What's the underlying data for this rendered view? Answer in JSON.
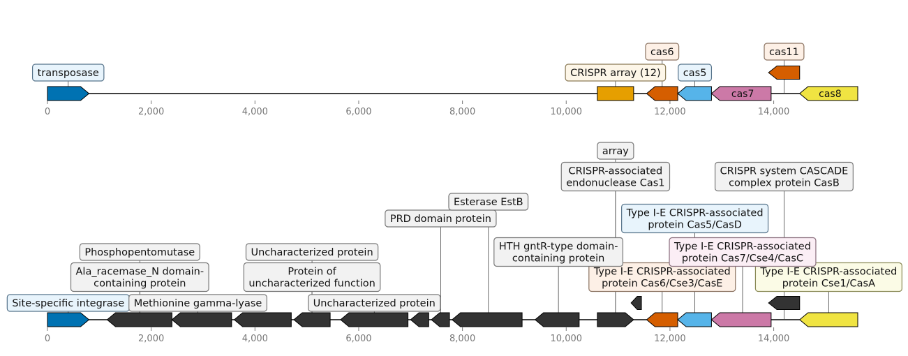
{
  "axis": {
    "ticks": [
      {
        "value": 0,
        "label": "0"
      },
      {
        "value": 2000,
        "label": "2,000"
      },
      {
        "value": 4000,
        "label": "4,000"
      },
      {
        "value": 6000,
        "label": "6,000"
      },
      {
        "value": 8000,
        "label": "8,000"
      },
      {
        "value": 10000,
        "label": "10,000"
      },
      {
        "value": 12000,
        "label": "12,000"
      },
      {
        "value": 14000,
        "label": "14,000"
      }
    ],
    "range": [
      0,
      15620
    ]
  },
  "colors": {
    "blue": "#0072b2",
    "orange": "#e69f00",
    "vermillion": "#d55e00",
    "skyblue": "#56b4e9",
    "pink": "#cc79a7",
    "yellow": "#f0e442",
    "dark": "#333333"
  },
  "track1": {
    "genes": [
      {
        "start": 0,
        "end": 800,
        "strand": 1,
        "color": "blue",
        "name": ""
      },
      {
        "start": 10600,
        "end": 11300,
        "strand": 0,
        "color": "orange",
        "name": ""
      },
      {
        "start": 11550,
        "end": 12150,
        "strand": -1,
        "color": "vermillion",
        "name": ""
      },
      {
        "start": 12150,
        "end": 12800,
        "strand": -1,
        "color": "skyblue",
        "name": ""
      },
      {
        "start": 12800,
        "end": 13950,
        "strand": -1,
        "color": "pink",
        "name": "cas7"
      },
      {
        "start": 14500,
        "end": 15620,
        "strand": -1,
        "color": "yellow",
        "name": "cas8"
      },
      {
        "start": 13900,
        "end": 14500,
        "strand": -1,
        "color": "vermillion",
        "name": "",
        "level": 1
      }
    ],
    "labels": [
      {
        "lines": [
          "transposase"
        ],
        "x": 400,
        "bg": "#e8f4fc",
        "border": "#56738a",
        "level": 0
      },
      {
        "lines": [
          "CRISPR array (12)"
        ],
        "x": 10950,
        "bg": "#fdf6e8",
        "border": "#8a7a56",
        "level": 0
      },
      {
        "lines": [
          "cas5"
        ],
        "x": 12480,
        "bg": "#e8f4fc",
        "border": "#56738a",
        "level": 0
      },
      {
        "lines": [
          "cas6"
        ],
        "x": 11850,
        "bg": "#fdf0e6",
        "border": "#8a7260",
        "level": 1
      },
      {
        "lines": [
          "cas11"
        ],
        "x": 14200,
        "bg": "#fdf0e6",
        "border": "#8a7260",
        "level": 1
      }
    ]
  },
  "track2": {
    "genes": [
      {
        "start": 0,
        "end": 800,
        "strand": 1,
        "color": "blue"
      },
      {
        "start": 1150,
        "end": 2400,
        "strand": -1,
        "color": "dark"
      },
      {
        "start": 2400,
        "end": 3550,
        "strand": -1,
        "color": "dark"
      },
      {
        "start": 3600,
        "end": 4700,
        "strand": -1,
        "color": "dark"
      },
      {
        "start": 4750,
        "end": 5450,
        "strand": -1,
        "color": "dark"
      },
      {
        "start": 5650,
        "end": 6950,
        "strand": -1,
        "color": "dark"
      },
      {
        "start": 7000,
        "end": 7350,
        "strand": -1,
        "color": "dark"
      },
      {
        "start": 7400,
        "end": 7750,
        "strand": -1,
        "color": "dark"
      },
      {
        "start": 7800,
        "end": 9150,
        "strand": -1,
        "color": "dark"
      },
      {
        "start": 9400,
        "end": 10250,
        "strand": -1,
        "color": "dark"
      },
      {
        "start": 10600,
        "end": 11300,
        "strand": 1,
        "color": "dark"
      },
      {
        "start": 11550,
        "end": 12150,
        "strand": -1,
        "color": "vermillion"
      },
      {
        "start": 12150,
        "end": 12800,
        "strand": -1,
        "color": "skyblue"
      },
      {
        "start": 12800,
        "end": 13950,
        "strand": -1,
        "color": "pink"
      },
      {
        "start": 14500,
        "end": 15620,
        "strand": -1,
        "color": "yellow"
      },
      {
        "start": 11250,
        "end": 11450,
        "strand": -1,
        "color": "dark",
        "level": 1
      },
      {
        "start": 13900,
        "end": 14500,
        "strand": -1,
        "color": "dark",
        "level": 1
      }
    ],
    "labels": [
      {
        "lines": [
          "Site-specific integrase"
        ],
        "x": 400,
        "level": 0,
        "bg": "#e8f4fc",
        "border": "#56738a"
      },
      {
        "lines": [
          "Methionine gamma-lyase"
        ],
        "x": 2900,
        "level": 0
      },
      {
        "lines": [
          "Uncharacterized protein"
        ],
        "x": 6300,
        "level": 0
      },
      {
        "lines": [
          "Ala_racemase_N domain-",
          "containing protein"
        ],
        "x": 1780,
        "level": 1
      },
      {
        "lines": [
          "Protein of",
          "uncharacterized function"
        ],
        "x": 5100,
        "level": 1
      },
      {
        "lines": [
          "Type I-E CRISPR-associated",
          "protein Cas6/Cse3/CasE"
        ],
        "x": 11850,
        "level": 1,
        "bg": "#fdf0e6",
        "border": "#8a7260"
      },
      {
        "lines": [
          "Type I-E CRISPR-associated",
          "protein Cse1/CasA"
        ],
        "x": 15060,
        "level": 1,
        "bg": "#fbfbe6",
        "border": "#8a8a56"
      },
      {
        "lines": [
          "Phosphopentomutase"
        ],
        "x": 1780,
        "level": 2
      },
      {
        "lines": [
          "Uncharacterized protein"
        ],
        "x": 5100,
        "level": 2
      },
      {
        "lines": [
          "HTH gntR-type domain-",
          "containing protein"
        ],
        "x": 9850,
        "level": 2
      },
      {
        "lines": [
          "Type I-E CRISPR-associated",
          "protein Cas7/Cse4/CasC"
        ],
        "x": 13400,
        "level": 2,
        "bg": "#fbeef5",
        "border": "#8a6f7e"
      },
      {
        "lines": [
          "PRD domain protein"
        ],
        "x": 7580,
        "level": 3
      },
      {
        "lines": [
          "Type I-E CRISPR-associated",
          "protein Cas5/CasD"
        ],
        "x": 12480,
        "level": 3,
        "bg": "#e8f4fc",
        "border": "#56738a"
      },
      {
        "lines": [
          "Esterase EstB"
        ],
        "x": 8500,
        "level": 4
      },
      {
        "lines": [
          "CRISPR-associated",
          "endonuclease Cas1"
        ],
        "x": 10950,
        "level": 5
      },
      {
        "lines": [
          "CRISPR system CASCADE",
          "complex protein CasB"
        ],
        "x": 14200,
        "level": 5
      },
      {
        "lines": [
          "array"
        ],
        "x": 10950,
        "level": 6
      }
    ]
  }
}
